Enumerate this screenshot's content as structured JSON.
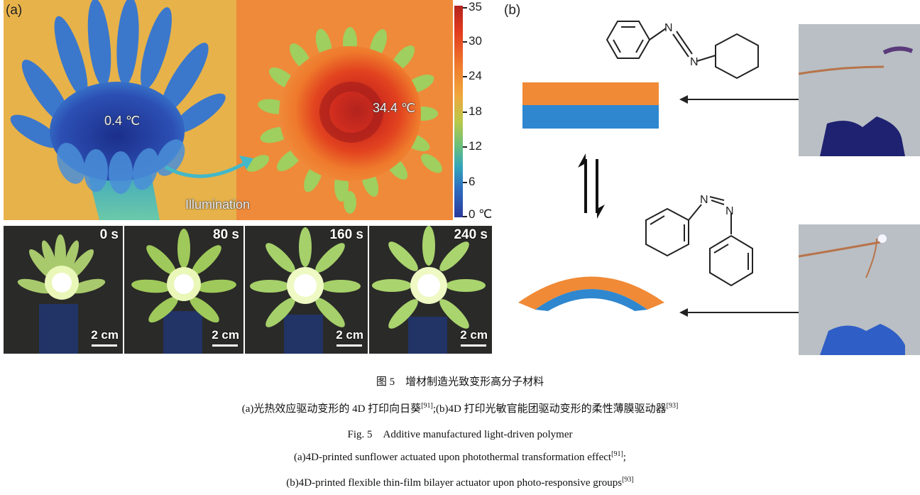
{
  "panel_a": {
    "label": "(a)",
    "temp_cold": "0.4 ℃",
    "temp_hot": "34.4 ℃",
    "illumination_label": "Illumination",
    "colorbar_ticks": [
      "35",
      "30",
      "24",
      "18",
      "12",
      "6",
      "0 ℃"
    ],
    "photos": [
      {
        "time": "0 s",
        "scale": "2 cm"
      },
      {
        "time": "80 s",
        "scale": "2 cm"
      },
      {
        "time": "160 s",
        "scale": "2 cm"
      },
      {
        "time": "240 s",
        "scale": "2 cm"
      }
    ]
  },
  "panel_b": {
    "label": "(b)",
    "azo_label_n": "N"
  },
  "caption": {
    "cn_title": "图 5　增材制造光致变形高分子材料",
    "cn_desc_a": "(a)光热效应驱动变形的 4D 打印向日葵",
    "cn_ref_a": "[91]",
    "cn_desc_b": ";(b)4D 打印光敏官能团驱动变形的柔性薄膜驱动器",
    "cn_ref_b": "[93]",
    "en_title": "Fig. 5　Additive manufactured light-driven polymer",
    "en_desc_a": "(a)4D-printed sunflower actuated upon photothermal transformation effect",
    "en_ref_a": "[91]",
    "en_sep_a": ";",
    "en_desc_b": "(b)4D-printed flexible thin-film bilayer actuator upon photo-responsive groups",
    "en_ref_b": "[93]"
  }
}
